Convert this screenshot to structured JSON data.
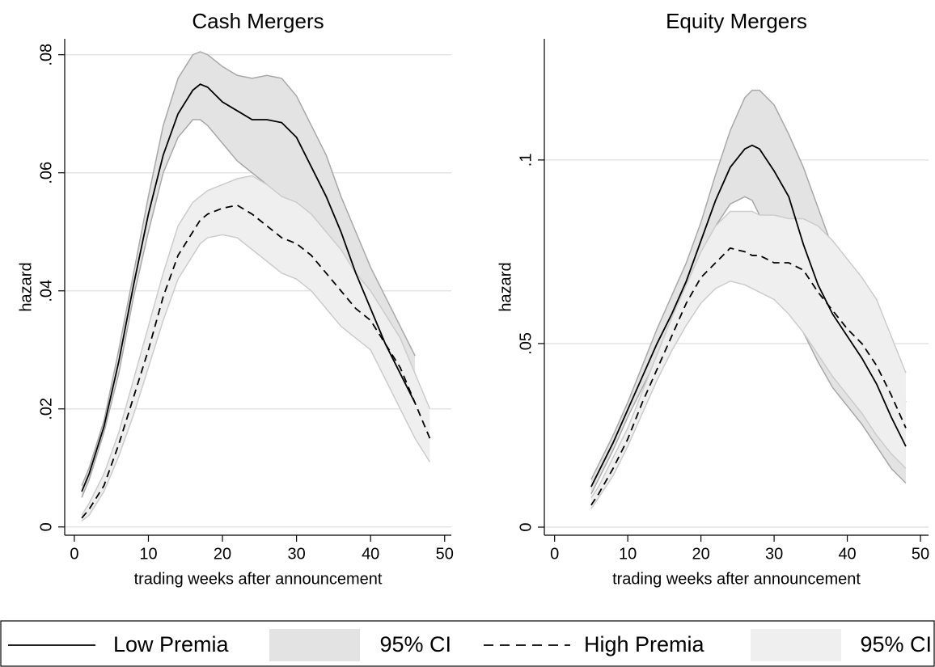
{
  "chart_data": [
    {
      "type": "line",
      "title": "Cash Mergers",
      "x_label": "trading weeks after announcement",
      "y_label": "hazard",
      "x": [
        1,
        2,
        4,
        6,
        8,
        10,
        12,
        14,
        16,
        17,
        18,
        20,
        22,
        24,
        26,
        28,
        30,
        32,
        34,
        36,
        38,
        40,
        42,
        44,
        46,
        48
      ],
      "series": [
        {
          "name": "Low Premia",
          "kind": "line",
          "line_style": "solid",
          "color": "#000000",
          "values": [
            0.006,
            0.009,
            0.017,
            0.028,
            0.041,
            0.053,
            0.063,
            0.07,
            0.074,
            0.075,
            0.0745,
            0.072,
            0.0705,
            0.069,
            0.069,
            0.0685,
            0.066,
            0.061,
            0.056,
            0.05,
            0.043,
            0.037,
            0.031,
            0.026,
            0.021,
            null
          ]
        },
        {
          "name": "95% CI",
          "kind": "band",
          "color": "#e3e3e3",
          "edge": "#a8a8a8",
          "lower": [
            0.005,
            0.008,
            0.016,
            0.026,
            0.039,
            0.05,
            0.06,
            0.066,
            0.069,
            0.069,
            0.068,
            0.065,
            0.062,
            0.06,
            0.058,
            0.055,
            0.052,
            0.049,
            0.046,
            0.043,
            0.039,
            0.034,
            0.029,
            0.024,
            0.019,
            null
          ],
          "upper": [
            0.007,
            0.01,
            0.018,
            0.03,
            0.043,
            0.056,
            0.068,
            0.076,
            0.08,
            0.0805,
            0.08,
            0.078,
            0.0765,
            0.076,
            0.0765,
            0.076,
            0.073,
            0.068,
            0.063,
            0.056,
            0.05,
            0.044,
            0.039,
            0.034,
            0.029,
            null
          ]
        },
        {
          "name": "High Premia",
          "kind": "line",
          "line_style": "dashed",
          "color": "#000000",
          "values": [
            0.0015,
            0.003,
            0.007,
            0.014,
            0.022,
            0.03,
            0.039,
            0.046,
            0.05,
            0.052,
            0.053,
            0.054,
            0.0545,
            0.053,
            0.051,
            0.049,
            0.048,
            0.046,
            0.043,
            0.04,
            0.037,
            0.035,
            0.031,
            0.027,
            0.021,
            0.015
          ]
        },
        {
          "name": "95% CI",
          "kind": "band",
          "color": "#efefef",
          "edge": "#cccccc",
          "lower": [
            0.001,
            0.002,
            0.006,
            0.012,
            0.019,
            0.027,
            0.035,
            0.042,
            0.046,
            0.048,
            0.049,
            0.0495,
            0.049,
            0.047,
            0.045,
            0.043,
            0.042,
            0.04,
            0.037,
            0.034,
            0.032,
            0.03,
            0.025,
            0.02,
            0.015,
            0.011
          ],
          "upper": [
            0.002,
            0.004,
            0.009,
            0.016,
            0.025,
            0.034,
            0.043,
            0.051,
            0.055,
            0.056,
            0.057,
            0.058,
            0.059,
            0.0595,
            0.058,
            0.056,
            0.055,
            0.053,
            0.05,
            0.047,
            0.043,
            0.04,
            0.036,
            0.032,
            0.026,
            0.02
          ]
        }
      ],
      "xlim": [
        -1.3,
        50.9
      ],
      "xticks": [
        0,
        10,
        20,
        30,
        40,
        50
      ],
      "ylim": [
        -0.0014,
        0.0827
      ],
      "yticks": [
        0,
        {
          "value": 0.02,
          "label": ".02"
        },
        {
          "value": 0.04,
          "label": ".04"
        },
        {
          "value": 0.06,
          "label": ".06"
        },
        {
          "value": 0.08,
          "label": ".08"
        }
      ],
      "grid": true
    },
    {
      "type": "line",
      "title": "Equity Mergers",
      "x_label": "trading weeks after announcement",
      "y_label": "hazard",
      "x": [
        5,
        6,
        8,
        10,
        12,
        14,
        16,
        18,
        20,
        22,
        24,
        26,
        27,
        28,
        30,
        32,
        34,
        36,
        38,
        40,
        42,
        44,
        46,
        48
      ],
      "series": [
        {
          "name": "Low Premia",
          "kind": "line",
          "line_style": "solid",
          "color": "#000000",
          "values": [
            0.011,
            0.015,
            0.023,
            0.032,
            0.041,
            0.05,
            0.058,
            0.067,
            0.078,
            0.089,
            0.098,
            0.103,
            0.104,
            0.103,
            0.097,
            0.09,
            0.077,
            0.066,
            0.058,
            0.052,
            0.046,
            0.039,
            0.03,
            0.022
          ]
        },
        {
          "name": "95% CI",
          "kind": "band",
          "color": "#e3e3e3",
          "edge": "#a8a8a8",
          "lower": [
            0.009,
            0.013,
            0.021,
            0.03,
            0.038,
            0.046,
            0.054,
            0.063,
            0.073,
            0.082,
            0.088,
            0.09,
            0.089,
            0.085,
            0.073,
            0.063,
            0.053,
            0.045,
            0.038,
            0.033,
            0.028,
            0.022,
            0.016,
            0.012
          ],
          "upper": [
            0.013,
            0.017,
            0.025,
            0.034,
            0.044,
            0.054,
            0.063,
            0.072,
            0.083,
            0.096,
            0.108,
            0.117,
            0.119,
            0.119,
            0.115,
            0.107,
            0.098,
            0.087,
            0.076,
            0.069,
            0.063,
            0.054,
            0.045,
            0.034
          ]
        },
        {
          "name": "High Premia",
          "kind": "line",
          "line_style": "dashed",
          "color": "#000000",
          "values": [
            0.006,
            0.009,
            0.016,
            0.024,
            0.034,
            0.043,
            0.052,
            0.061,
            0.068,
            0.072,
            0.076,
            0.075,
            0.074,
            0.074,
            0.072,
            0.072,
            0.07,
            0.064,
            0.059,
            0.054,
            0.05,
            0.044,
            0.036,
            0.027
          ]
        },
        {
          "name": "95% CI",
          "kind": "band",
          "color": "#efefef",
          "edge": "#cccccc",
          "lower": [
            0.005,
            0.008,
            0.014,
            0.022,
            0.031,
            0.04,
            0.048,
            0.055,
            0.061,
            0.065,
            0.067,
            0.066,
            0.065,
            0.064,
            0.062,
            0.058,
            0.053,
            0.047,
            0.041,
            0.036,
            0.031,
            0.025,
            0.02,
            0.016
          ],
          "upper": [
            0.008,
            0.011,
            0.019,
            0.027,
            0.037,
            0.047,
            0.057,
            0.066,
            0.075,
            0.082,
            0.086,
            0.086,
            0.086,
            0.085,
            0.085,
            0.084,
            0.084,
            0.082,
            0.078,
            0.073,
            0.068,
            0.062,
            0.052,
            0.042
          ]
        }
      ],
      "xlim": [
        -1.4,
        51.1
      ],
      "xticks": [
        0,
        10,
        20,
        30,
        40,
        50
      ],
      "ylim": [
        -0.0022,
        0.133
      ],
      "yticks": [
        0,
        {
          "value": 0.05,
          "label": ".05"
        },
        {
          "value": 0.1,
          "label": ".1"
        }
      ],
      "grid": true
    }
  ]
}
